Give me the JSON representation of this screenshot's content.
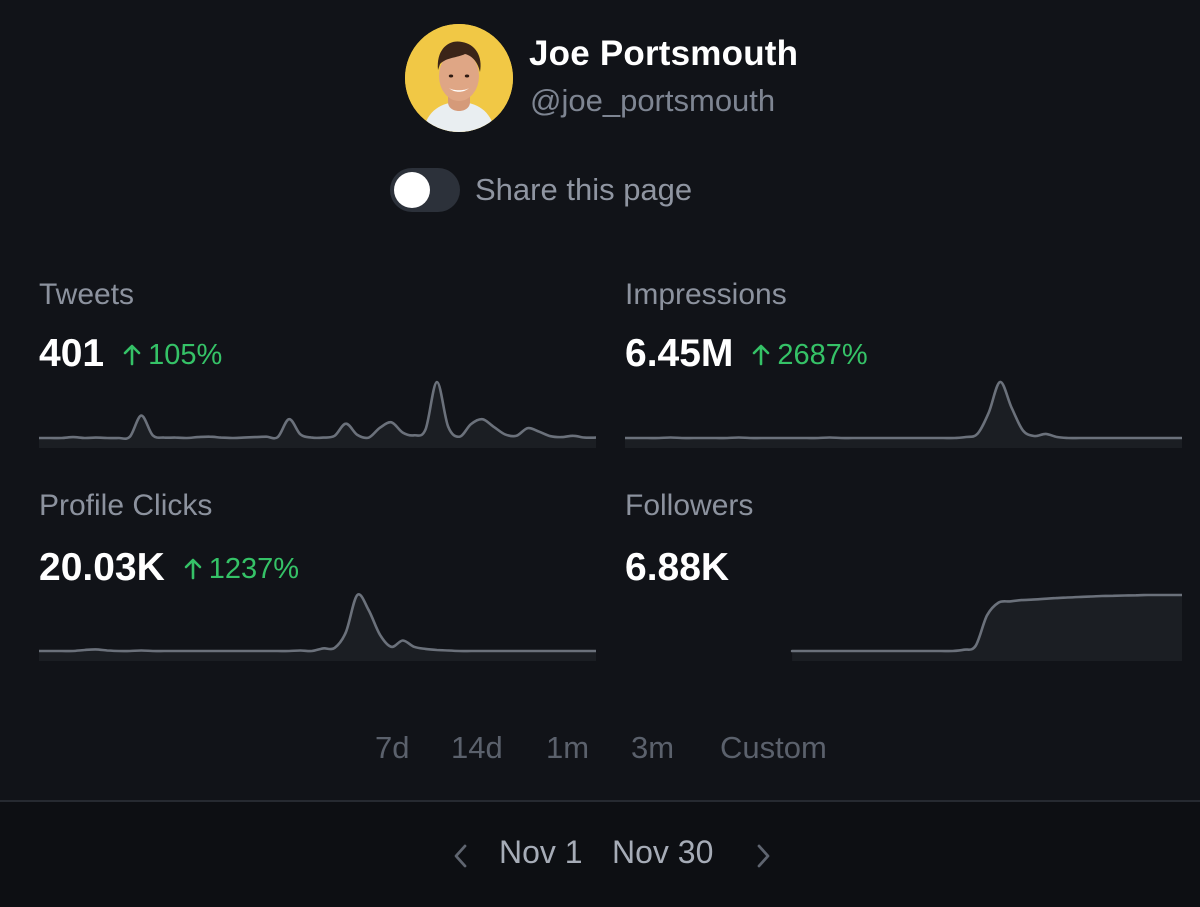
{
  "profile": {
    "name": "Joe Portsmouth",
    "handle": "@joe_portsmouth",
    "avatar_background": "#f1c845"
  },
  "share": {
    "label": "Share this page",
    "enabled": false
  },
  "metrics": [
    {
      "label": "Tweets",
      "value": "401",
      "change": "105%",
      "series": [
        2,
        2,
        2,
        2.2,
        2,
        2.1,
        2,
        2,
        2.3,
        7,
        2.6,
        2.1,
        2.1,
        2,
        2.2,
        2.3,
        2.1,
        2,
        2.1,
        2.2,
        2.3,
        2.2,
        6.2,
        2.8,
        2.1,
        2.1,
        2.5,
        5.2,
        2.7,
        2.1,
        4.3,
        5.5,
        3.2,
        2.6,
        3.9,
        14.5,
        4.5,
        2.3,
        5.1,
        6.2,
        4.5,
        2.8,
        2.5,
        4.2,
        3.4,
        2.4,
        2.2,
        2.5,
        2.1,
        2.1
      ]
    },
    {
      "label": "Impressions",
      "value": "6.45M",
      "change": "2687%",
      "series": [
        1,
        1,
        1,
        1,
        1.1,
        1,
        1,
        1,
        1,
        1,
        1.1,
        1,
        1,
        1,
        1,
        1,
        1,
        1,
        1.1,
        1,
        1,
        1,
        1,
        1,
        1,
        1,
        1,
        1,
        1,
        1,
        1.2,
        1.8,
        6,
        12,
        7,
        2.5,
        1.4,
        1.8,
        1.2,
        1,
        1,
        1,
        1,
        1,
        1,
        1,
        1,
        1,
        1,
        1
      ]
    },
    {
      "label": "Profile Clicks",
      "value": "20.03K",
      "change": "1237%",
      "series": [
        1,
        1,
        1,
        1,
        1.2,
        1.3,
        1.1,
        1,
        1,
        1.1,
        1,
        1,
        1,
        1,
        1,
        1,
        1,
        1,
        1,
        1,
        1,
        1,
        1,
        1.1,
        1,
        1.5,
        1.6,
        4.6,
        11.7,
        8.8,
        4.1,
        1.8,
        3,
        1.8,
        1.4,
        1.2,
        1.1,
        1,
        1,
        1,
        1,
        1,
        1,
        1,
        1,
        1,
        1,
        1,
        1,
        1
      ]
    },
    {
      "label": "Followers",
      "value": "6.88K",
      "change": "",
      "series_start_fraction": 0.3,
      "series": [
        6660,
        6660,
        6660,
        6660,
        6660,
        6660,
        6660,
        6660,
        6660,
        6660,
        6660,
        6660,
        6660,
        6660,
        6660,
        6665,
        6680,
        6800,
        6850,
        6855,
        6860,
        6862,
        6865,
        6868,
        6870,
        6872,
        6874,
        6876,
        6877,
        6878,
        6879,
        6880,
        6880,
        6880,
        6880
      ]
    }
  ],
  "ranges": [
    "7d",
    "14d",
    "1m",
    "3m",
    "Custom"
  ],
  "date_range": {
    "start": "Nov 1",
    "end": "Nov 30"
  },
  "icons": {
    "up": "arrow-up-icon",
    "prev": "chevron-left-icon",
    "next": "chevron-right-icon"
  },
  "colors": {
    "background": "#111318",
    "positive": "#35c267",
    "sparkline": "#6b717b",
    "footer": "#0d0f13"
  }
}
